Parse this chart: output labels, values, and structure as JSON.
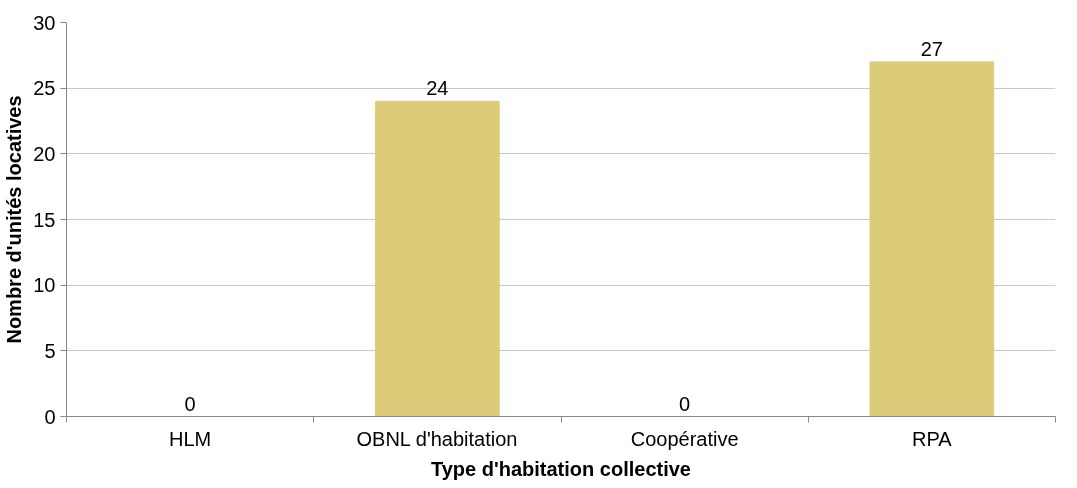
{
  "chart_data": {
    "type": "bar",
    "categories": [
      "HLM",
      "OBNL d'habitation",
      "Coopérative",
      "RPA"
    ],
    "values": [
      0,
      24,
      0,
      27
    ],
    "color": "#dccb78",
    "xlabel": "Type d'habitation collective",
    "ylabel": "Nombre d'unités locatives",
    "ylim": [
      0,
      30
    ],
    "yticks": [
      0,
      5,
      10,
      15,
      20,
      25,
      30
    ],
    "grid": "y",
    "data_labels": true
  }
}
